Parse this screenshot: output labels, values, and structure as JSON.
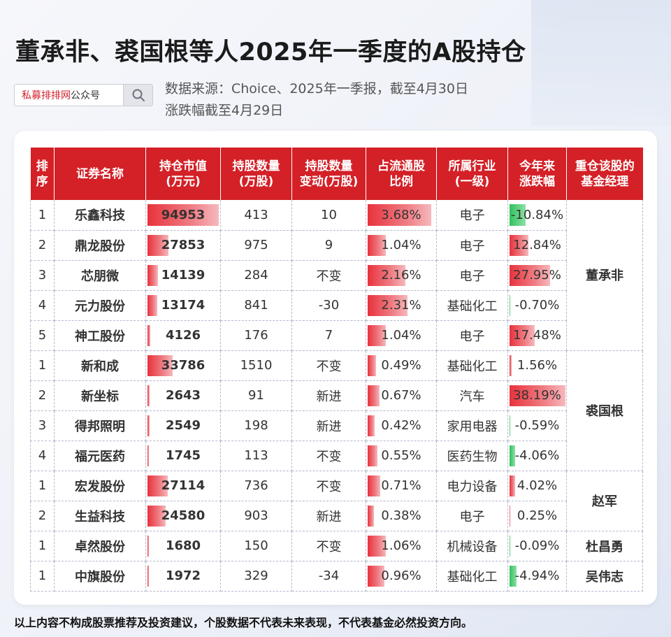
{
  "title": "董承非、裘国根等人2025年一季度的A股持仓",
  "search": {
    "brand": "私募排排网",
    "suffix": "公众号",
    "icon": "search-icon"
  },
  "source_line1": "数据来源：Choice、2025年一季报，截至4月30日",
  "source_line2": "涨跌幅截至4月29日",
  "headers": {
    "seq": [
      "排",
      "序"
    ],
    "name": "证券名称",
    "mv": [
      "持仓市值",
      "(万元)"
    ],
    "shares": [
      "持股数量",
      "(万股)"
    ],
    "chg": [
      "持股数量",
      "变动(万股)"
    ],
    "ratio": [
      "占流通股",
      "比例"
    ],
    "industry": [
      "所属行业",
      "(一级)"
    ],
    "ytd": [
      "今年来",
      "涨跌幅"
    ],
    "mgr": [
      "重仓该股的",
      "基金经理"
    ]
  },
  "rows": [
    {
      "seq": "1",
      "name": "乐鑫科技",
      "mv": "94953",
      "mv_v": 94953,
      "shares": "413",
      "chg": "10",
      "ratio": "3.68%",
      "ratio_v": 3.68,
      "industry": "电子",
      "ytd": "-10.84%",
      "ytd_v": -10.84
    },
    {
      "seq": "2",
      "name": "鼎龙股份",
      "mv": "27853",
      "mv_v": 27853,
      "shares": "975",
      "chg": "9",
      "ratio": "1.04%",
      "ratio_v": 1.04,
      "industry": "电子",
      "ytd": "12.84%",
      "ytd_v": 12.84
    },
    {
      "seq": "3",
      "name": "芯朋微",
      "mv": "14139",
      "mv_v": 14139,
      "shares": "284",
      "chg": "不变",
      "ratio": "2.16%",
      "ratio_v": 2.16,
      "industry": "电子",
      "ytd": "27.95%",
      "ytd_v": 27.95
    },
    {
      "seq": "4",
      "name": "元力股份",
      "mv": "13174",
      "mv_v": 13174,
      "shares": "841",
      "chg": "-30",
      "ratio": "2.31%",
      "ratio_v": 2.31,
      "industry": "基础化工",
      "ytd": "-0.70%",
      "ytd_v": -0.7
    },
    {
      "seq": "5",
      "name": "神工股份",
      "mv": "4126",
      "mv_v": 4126,
      "shares": "176",
      "chg": "7",
      "ratio": "1.04%",
      "ratio_v": 1.04,
      "industry": "电子",
      "ytd": "17.48%",
      "ytd_v": 17.48
    },
    {
      "seq": "1",
      "name": "新和成",
      "mv": "33786",
      "mv_v": 33786,
      "shares": "1510",
      "chg": "不变",
      "ratio": "0.49%",
      "ratio_v": 0.49,
      "industry": "基础化工",
      "ytd": "1.56%",
      "ytd_v": 1.56
    },
    {
      "seq": "2",
      "name": "新坐标",
      "mv": "2643",
      "mv_v": 2643,
      "shares": "91",
      "chg": "新进",
      "ratio": "0.67%",
      "ratio_v": 0.67,
      "industry": "汽车",
      "ytd": "38.19%",
      "ytd_v": 38.19
    },
    {
      "seq": "3",
      "name": "得邦照明",
      "mv": "2549",
      "mv_v": 2549,
      "shares": "198",
      "chg": "新进",
      "ratio": "0.42%",
      "ratio_v": 0.42,
      "industry": "家用电器",
      "ytd": "-0.59%",
      "ytd_v": -0.59
    },
    {
      "seq": "4",
      "name": "福元医药",
      "mv": "1745",
      "mv_v": 1745,
      "shares": "113",
      "chg": "不变",
      "ratio": "0.55%",
      "ratio_v": 0.55,
      "industry": "医药生物",
      "ytd": "-4.06%",
      "ytd_v": -4.06
    },
    {
      "seq": "1",
      "name": "宏发股份",
      "mv": "27114",
      "mv_v": 27114,
      "shares": "736",
      "chg": "不变",
      "ratio": "0.71%",
      "ratio_v": 0.71,
      "industry": "电力设备",
      "ytd": "4.02%",
      "ytd_v": 4.02
    },
    {
      "seq": "2",
      "name": "生益科技",
      "mv": "24580",
      "mv_v": 24580,
      "shares": "903",
      "chg": "新进",
      "ratio": "0.38%",
      "ratio_v": 0.38,
      "industry": "电子",
      "ytd": "0.25%",
      "ytd_v": 0.25
    },
    {
      "seq": "1",
      "name": "卓然股份",
      "mv": "1680",
      "mv_v": 1680,
      "shares": "150",
      "chg": "不变",
      "ratio": "1.06%",
      "ratio_v": 1.06,
      "industry": "机械设备",
      "ytd": "-0.09%",
      "ytd_v": -0.09
    },
    {
      "seq": "1",
      "name": "中旗股份",
      "mv": "1972",
      "mv_v": 1972,
      "shares": "329",
      "chg": "-34",
      "ratio": "0.96%",
      "ratio_v": 0.96,
      "industry": "基础化工",
      "ytd": "-4.94%",
      "ytd_v": -4.94
    }
  ],
  "managers": [
    {
      "name": "董承非",
      "span": 5
    },
    {
      "name": "裘国根",
      "span": 4
    },
    {
      "name": "赵军",
      "span": 2
    },
    {
      "name": "杜昌勇",
      "span": 1
    },
    {
      "name": "吴伟志",
      "span": 1
    }
  ],
  "colors": {
    "header_red": "#d42027",
    "bar_red": "#e8323c",
    "bar_green": "#2fc25b"
  },
  "footer": "以上内容不构成股票推荐及投资建议，个股数据不代表未来表现，不代表基金必然投资方向。"
}
